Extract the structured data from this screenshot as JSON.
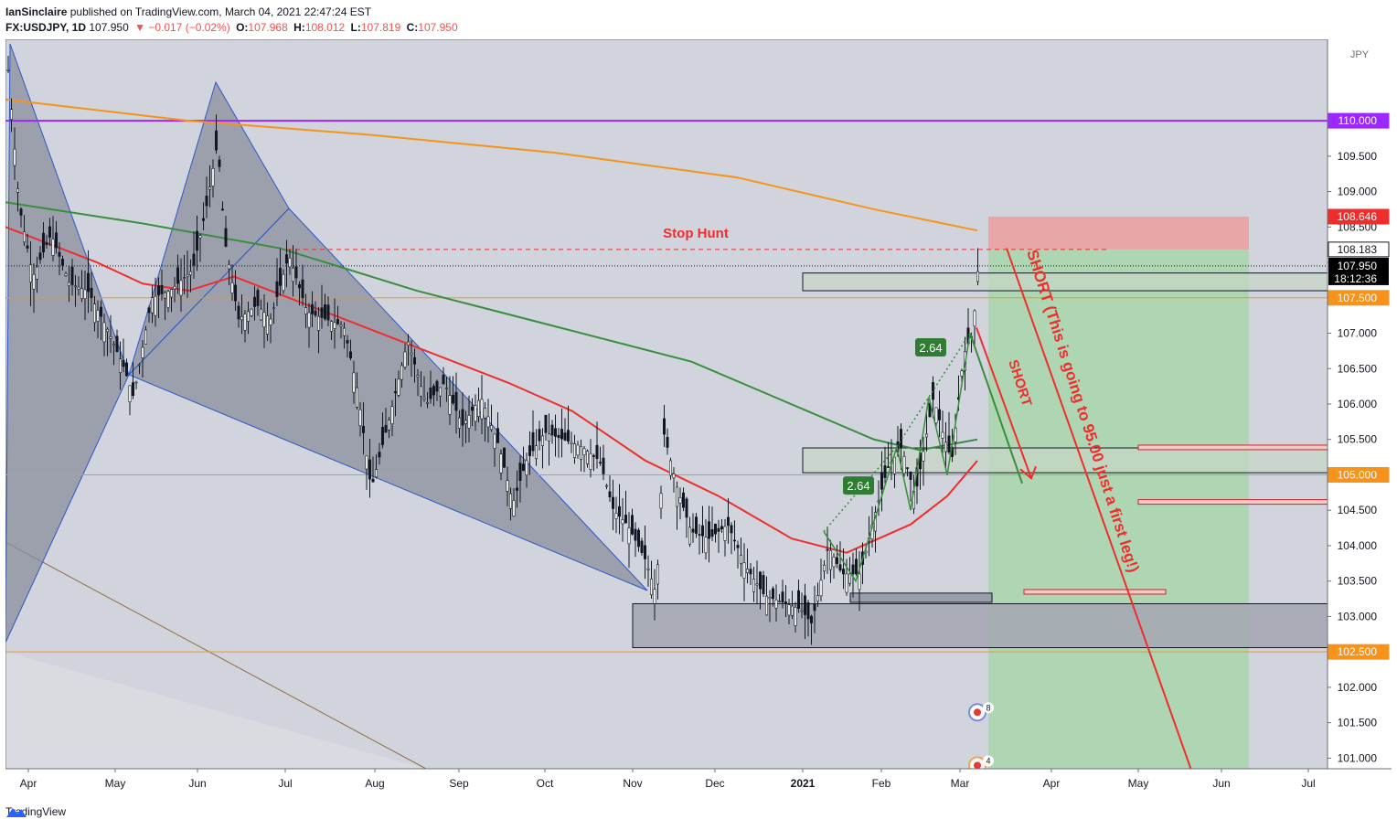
{
  "header": {
    "author": "IanSinclaire",
    "published": "published on TradingView.com, March 04, 2021 22:47:24 EST",
    "symbol": "FX:USDJPY, 1D",
    "last": "107.950",
    "change": "▼ −0.017 (−0.02%)",
    "o_label": "O:",
    "o": "107.968",
    "h_label": "H:",
    "h": "108.012",
    "l_label": "L:",
    "l": "107.819",
    "c_label": "C:",
    "c": "107.950"
  },
  "footer": {
    "brand": "TradingView"
  },
  "colors": {
    "bg": "#d1d4dc",
    "purple": "#9c27ff",
    "orange": "#f7931a",
    "red": "#ef2d2d",
    "green": "#388e3c",
    "candle": "#131722",
    "pattern_fill": "#8a8f9c",
    "pattern_line": "#2a58c8",
    "long_green": "#a5d6a7",
    "long_red": "#ef9a9a"
  },
  "chart_data": {
    "type": "candlestick",
    "currency": "JPY",
    "y_axis_ticks": [
      101.0,
      101.5,
      102.0,
      102.5,
      103.0,
      103.5,
      104.0,
      104.5,
      105.0,
      105.5,
      106.0,
      106.5,
      107.0,
      107.5,
      108.0,
      108.5,
      109.0,
      109.5,
      110.0
    ],
    "y_axis_tick_labels": [
      "101.000",
      "101.500",
      "102.000",
      "102.500",
      "103.000",
      "103.500",
      "104.000",
      "104.500",
      "105.000",
      "105.500",
      "106.000",
      "106.500",
      "107.000",
      "107.500",
      "108.000",
      "108.500",
      "109.000",
      "109.500",
      "110.000"
    ],
    "ylim": [
      100.85,
      111.15
    ],
    "x_axis_labels": [
      "Apr",
      "May",
      "Jun",
      "Jul",
      "Aug",
      "Sep",
      "Oct",
      "Nov",
      "Dec",
      "2021",
      "Feb",
      "Mar",
      "Apr",
      "May",
      "Jun",
      "Jul"
    ],
    "price_tags": [
      {
        "label": "110.000",
        "value": 110.0,
        "color": "#9c27ff"
      },
      {
        "label": "108.646",
        "value": 108.646,
        "color": "#ef2d2d"
      },
      {
        "label": "108.183",
        "value": 108.183,
        "color": "#ffffff"
      },
      {
        "label": "107.500",
        "value": 107.5,
        "color": "#f7931a"
      },
      {
        "label": "105.000",
        "value": 105.0,
        "color": "#f7931a"
      },
      {
        "label": "102.500",
        "value": 102.5,
        "color": "#f7931a"
      }
    ],
    "last_price": {
      "label": "107.950",
      "value": 107.95,
      "countdown": "18:12:36"
    },
    "horizontal_levels": [
      110.0,
      107.5,
      105.0,
      102.5
    ],
    "stop_hunt_level": 108.183,
    "position": {
      "stop": 108.646,
      "entry": 108.183,
      "target": 100.85
    },
    "annotations": [
      "Stop Hunt",
      "SHORT",
      "SHORT (This is going to 95.00 just a first leg!)",
      "2.64",
      "2.64"
    ],
    "event_badges": [
      "8",
      "4"
    ],
    "ma_orange": [
      [
        0,
        110.3
      ],
      [
        200,
        110.0
      ],
      [
        400,
        109.8
      ],
      [
        600,
        109.55
      ],
      [
        800,
        109.2
      ],
      [
        950,
        108.75
      ],
      [
        1063,
        108.45
      ]
    ],
    "ma_green": [
      [
        0,
        108.85
      ],
      [
        150,
        108.55
      ],
      [
        300,
        108.2
      ],
      [
        450,
        107.6
      ],
      [
        600,
        107.1
      ],
      [
        750,
        106.6
      ],
      [
        850,
        106.05
      ],
      [
        950,
        105.5
      ],
      [
        1000,
        105.35
      ],
      [
        1063,
        105.5
      ]
    ],
    "ma_red": [
      [
        0,
        108.5
      ],
      [
        100,
        108.0
      ],
      [
        150,
        107.7
      ],
      [
        200,
        107.6
      ],
      [
        250,
        107.8
      ],
      [
        350,
        107.3
      ],
      [
        450,
        106.8
      ],
      [
        550,
        106.3
      ],
      [
        620,
        105.9
      ],
      [
        700,
        105.2
      ],
      [
        780,
        104.7
      ],
      [
        860,
        104.1
      ],
      [
        920,
        103.9
      ],
      [
        990,
        104.3
      ],
      [
        1030,
        104.7
      ],
      [
        1063,
        105.2
      ]
    ],
    "candles_close_path": [
      [
        0,
        111.2
      ],
      [
        15,
        108.8
      ],
      [
        30,
        107.8
      ],
      [
        50,
        108.4
      ],
      [
        70,
        107.7
      ],
      [
        90,
        107.6
      ],
      [
        110,
        107.1
      ],
      [
        130,
        106.5
      ],
      [
        140,
        106.1
      ],
      [
        160,
        107.5
      ],
      [
        180,
        107.6
      ],
      [
        205,
        107.9
      ],
      [
        220,
        108.8
      ],
      [
        232,
        109.7
      ],
      [
        240,
        108.3
      ],
      [
        255,
        107.2
      ],
      [
        275,
        107.4
      ],
      [
        290,
        107.2
      ],
      [
        310,
        108.1
      ],
      [
        330,
        107.3
      ],
      [
        350,
        107.2
      ],
      [
        370,
        107.1
      ],
      [
        385,
        106.2
      ],
      [
        400,
        104.8
      ],
      [
        420,
        105.8
      ],
      [
        440,
        106.9
      ],
      [
        460,
        106.0
      ],
      [
        480,
        106.3
      ],
      [
        500,
        105.7
      ],
      [
        520,
        106.1
      ],
      [
        540,
        105.4
      ],
      [
        555,
        104.6
      ],
      [
        570,
        105.2
      ],
      [
        590,
        105.6
      ],
      [
        610,
        105.5
      ],
      [
        630,
        105.4
      ],
      [
        650,
        105.2
      ],
      [
        665,
        104.5
      ],
      [
        680,
        104.3
      ],
      [
        700,
        103.8
      ],
      [
        712,
        103.3
      ],
      [
        720,
        105.6
      ],
      [
        735,
        104.8
      ],
      [
        750,
        104.2
      ],
      [
        770,
        104.1
      ],
      [
        790,
        104.3
      ],
      [
        810,
        103.7
      ],
      [
        830,
        103.3
      ],
      [
        850,
        103.2
      ],
      [
        870,
        103.1
      ],
      [
        882,
        102.9
      ],
      [
        900,
        104.0
      ],
      [
        915,
        103.6
      ],
      [
        935,
        103.6
      ],
      [
        950,
        104.4
      ],
      [
        965,
        105.1
      ],
      [
        980,
        105.4
      ],
      [
        995,
        104.7
      ],
      [
        1005,
        105.4
      ],
      [
        1015,
        106.1
      ],
      [
        1025,
        105.6
      ],
      [
        1035,
        105.2
      ],
      [
        1048,
        106.7
      ],
      [
        1058,
        107.0
      ],
      [
        1064,
        107.95
      ]
    ]
  }
}
